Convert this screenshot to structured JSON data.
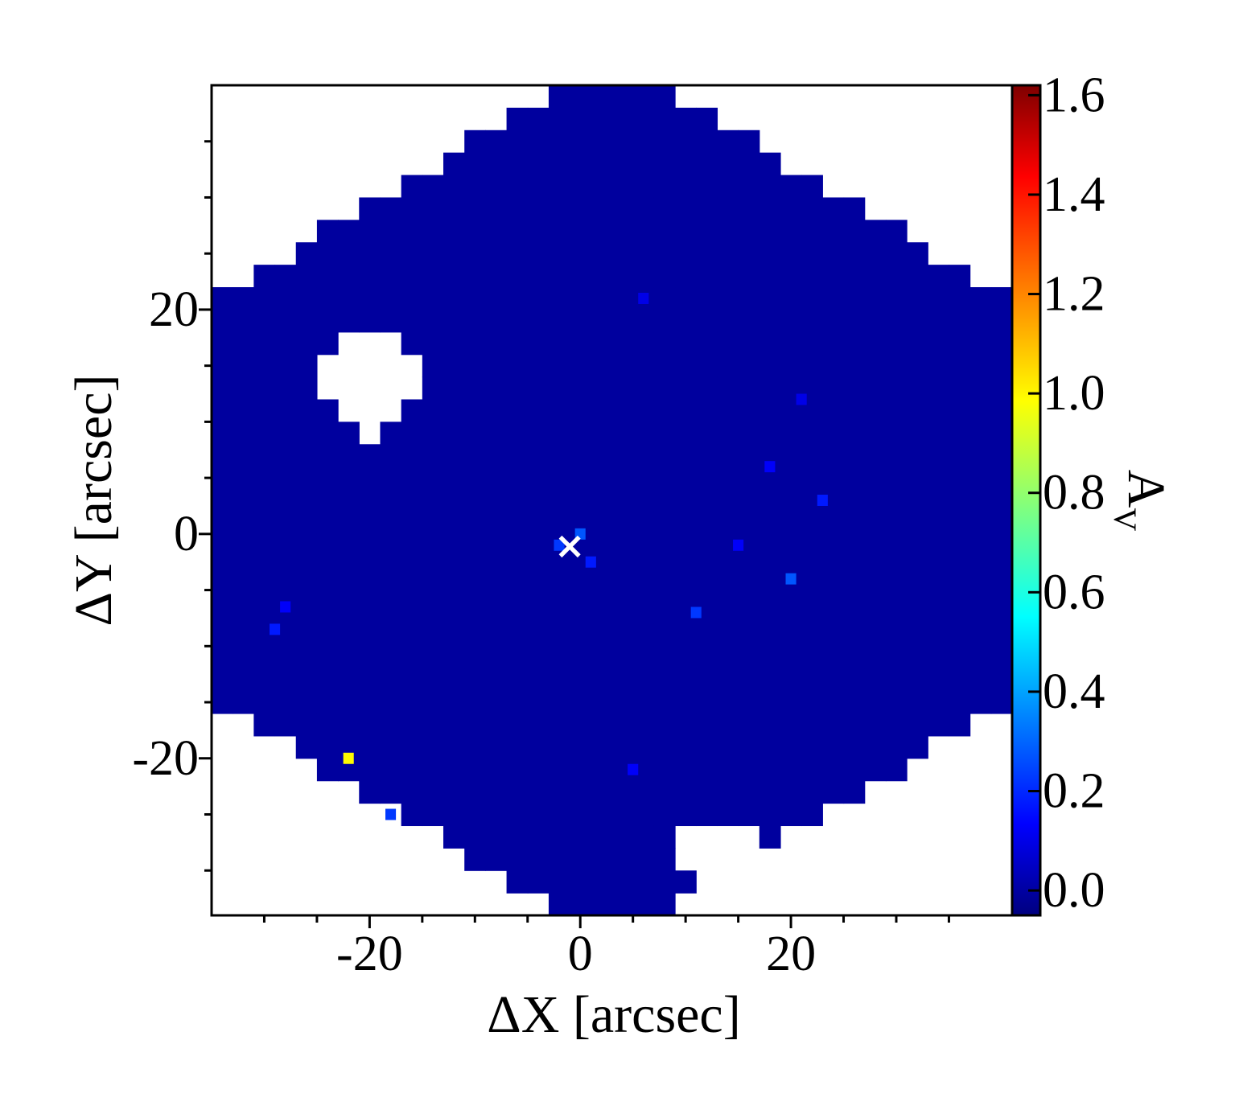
{
  "chart_data": {
    "type": "heatmap",
    "xlabel": "ΔX [arcsec]",
    "ylabel": "ΔY [arcsec]",
    "colorbar_label": "A",
    "colorbar_label_subscript": "V",
    "xlim": [
      -35,
      41
    ],
    "ylim": [
      -34,
      40
    ],
    "x_ticks": [
      -20,
      0,
      20
    ],
    "x_tick_labels": [
      "-20",
      "0",
      "20"
    ],
    "y_ticks": [
      -20,
      0,
      20
    ],
    "y_tick_labels": [
      "-20",
      "0",
      "20"
    ],
    "colorbar_range": [
      -0.05,
      1.62
    ],
    "colorbar_ticks": [
      0.0,
      0.2,
      0.4,
      0.6,
      0.8,
      1.0,
      1.2,
      1.4,
      1.6
    ],
    "colorbar_tick_labels": [
      "0.0",
      "0.2",
      "0.4",
      "0.6",
      "0.8",
      "1.0",
      "1.2",
      "1.4",
      "1.6"
    ],
    "colormap": "jet",
    "pixel_size_arcsec": 2,
    "background_value": 0.0,
    "field_shape": "hexagonal",
    "masked_regions": [
      {
        "x_center": -20,
        "y_center": 13.5,
        "radius": 4.5
      },
      {
        "x_center": 13,
        "y_center": -28.5,
        "radius": 3.5
      }
    ],
    "notable_pixels": [
      {
        "x": -22,
        "y": -20,
        "value": 1.0
      },
      {
        "x": -29,
        "y": -8.5,
        "value": 0.2
      },
      {
        "x": -28,
        "y": -6.5,
        "value": 0.15
      },
      {
        "x": -18,
        "y": -25,
        "value": 0.25
      },
      {
        "x": 0,
        "y": 0,
        "value": 0.3
      },
      {
        "x": -2,
        "y": -1,
        "value": 0.25
      },
      {
        "x": 1,
        "y": -2.5,
        "value": 0.2
      },
      {
        "x": 20,
        "y": -4,
        "value": 0.3
      },
      {
        "x": 15,
        "y": -1,
        "value": 0.15
      },
      {
        "x": 11,
        "y": -7,
        "value": 0.25
      },
      {
        "x": 23,
        "y": 3,
        "value": 0.2
      },
      {
        "x": 18,
        "y": 6,
        "value": 0.15
      },
      {
        "x": 21,
        "y": 12,
        "value": 0.12
      },
      {
        "x": 6,
        "y": 21,
        "value": 0.12
      },
      {
        "x": 5,
        "y": -21,
        "value": 0.15
      }
    ],
    "marker": {
      "symbol": "×",
      "x": -1,
      "y": -1,
      "color": "#ffffff"
    }
  }
}
